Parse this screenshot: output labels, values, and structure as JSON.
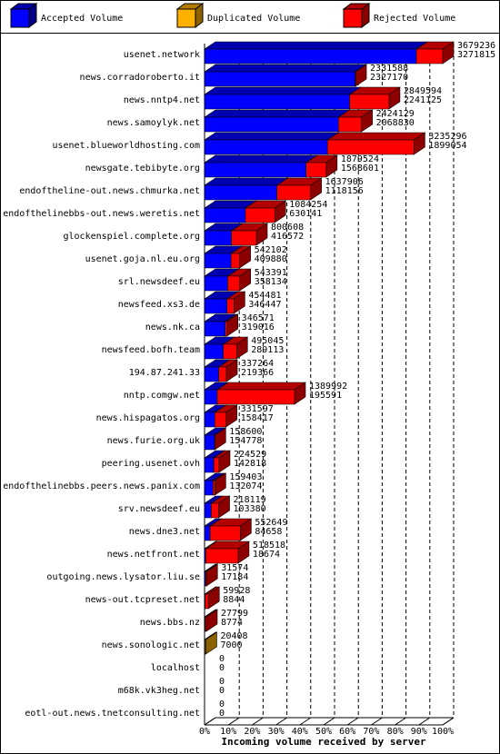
{
  "chart_data": {
    "type": "bar3d",
    "x_label": "Incoming volume received by server",
    "categories": [
      "usenet.network",
      "news.corradoroberto.it",
      "news.nntp4.net",
      "news.samoylyk.net",
      "usenet.blueworldhosting.com",
      "newsgate.tebibyte.org",
      "endoftheline-out.news.chmurka.net",
      "endofthelinebbs-out.news.weretis.net",
      "glockenspiel.complete.org",
      "usenet.goja.nl.eu.org",
      "srl.newsdeef.eu",
      "newsfeed.xs3.de",
      "news.nk.ca",
      "newsfeed.bofh.team",
      "194.87.241.33",
      "nntp.comgw.net",
      "news.hispagatos.org",
      "news.furie.org.uk",
      "peering.usenet.ovh",
      "endofthelinebbs.peers.news.panix.com",
      "srv.newsdeef.eu",
      "news.dne3.net",
      "news.netfront.net",
      "outgoing.news.lysator.liu.se",
      "news-out.tcpreset.net",
      "news.bbs.nz",
      "news.sonologic.net",
      "localhost",
      "m68k.vk3heg.net",
      "eotl-out.news.tnetconsulting.net"
    ],
    "totals": [
      3679236,
      2331588,
      2849594,
      2424129,
      3235296,
      1879524,
      1637906,
      1084254,
      800608,
      542102,
      543391,
      454481,
      346571,
      495045,
      337264,
      1389992,
      331597,
      158600,
      224529,
      159403,
      218119,
      552649,
      518518,
      31574,
      59928,
      27799,
      20408,
      0,
      0,
      0
    ],
    "series": [
      {
        "name": "Accepted Volume",
        "color": "#0000ff",
        "values": [
          3271815,
          2327170,
          2241125,
          2068830,
          1899054,
          1568601,
          1118156,
          630141,
          416572,
          409880,
          358134,
          346447,
          319016,
          289113,
          219366,
          195591,
          158417,
          154778,
          142818,
          132074,
          103380,
          84658,
          18674,
          17184,
          8844,
          8774,
          7000,
          0,
          0,
          0
        ]
      },
      {
        "name": "Duplicated Volume",
        "color": "#ffb000",
        "values": [
          null,
          null,
          null,
          null,
          null,
          null,
          null,
          null,
          null,
          null,
          null,
          null,
          null,
          null,
          null,
          null,
          null,
          null,
          null,
          null,
          null,
          null,
          null,
          null,
          null,
          null,
          13408,
          null,
          null,
          null
        ]
      },
      {
        "name": "Rejected Volume",
        "color": "#ff0000"
      }
    ],
    "xlim": [
      0,
      3679236
    ],
    "xticks": [
      {
        "value": 0,
        "label": "0%"
      },
      {
        "value": 367923.6,
        "label": "10%"
      },
      {
        "value": 735847.2,
        "label": "20%"
      },
      {
        "value": 1103770.8,
        "label": "30%"
      },
      {
        "value": 1471694.4,
        "label": "40%"
      },
      {
        "value": 1839618,
        "label": "50%"
      },
      {
        "value": 2207541.6,
        "label": "60%"
      },
      {
        "value": 2575465.2,
        "label": "70%"
      },
      {
        "value": 2943388.8,
        "label": "80%"
      },
      {
        "value": 3311312.4,
        "label": "90%"
      },
      {
        "value": 3679236,
        "label": "100%"
      }
    ],
    "grid": true
  }
}
